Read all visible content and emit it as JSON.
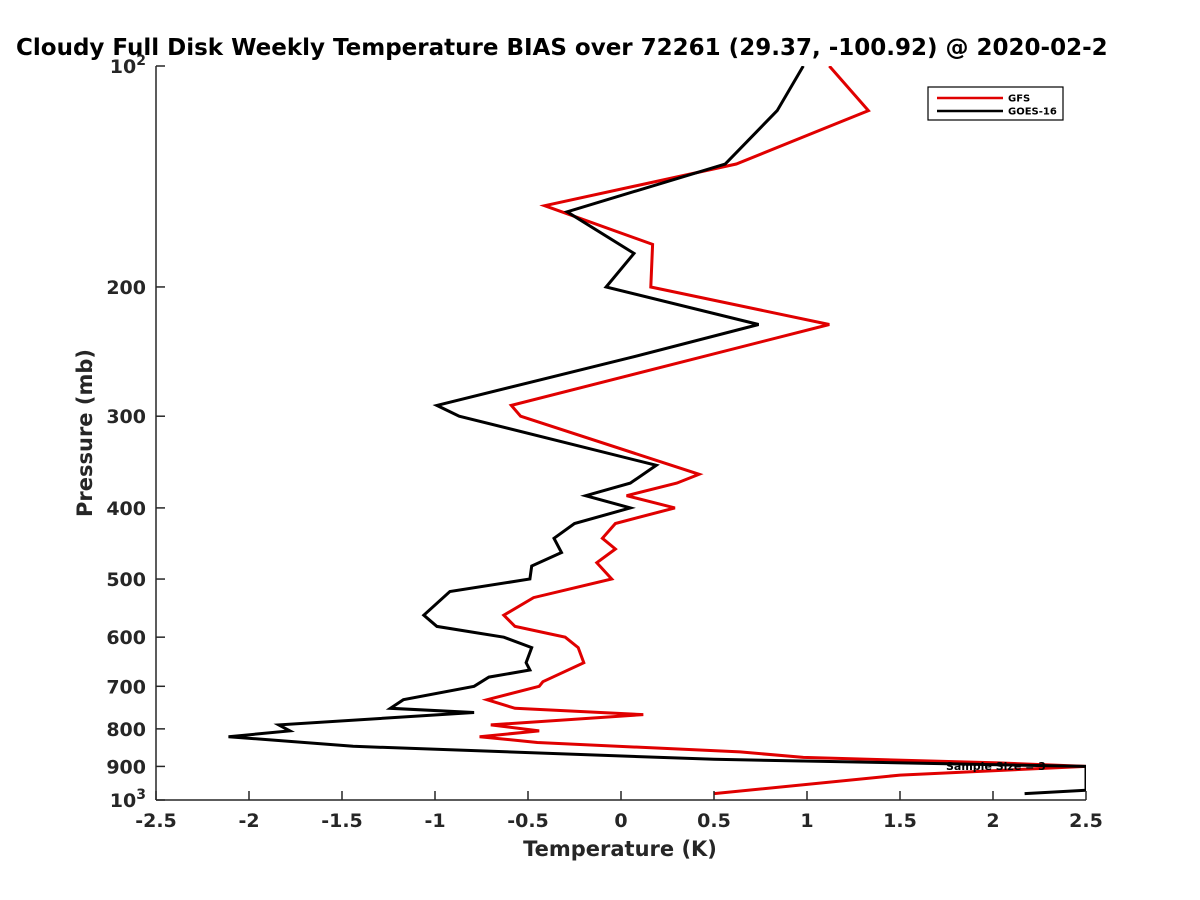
{
  "chart_data": {
    "type": "line",
    "title": "Cloudy Full Disk Weekly Temperature BIAS over 72261 (29.37, -100.92) @ 2020-02-2",
    "xlabel": "Temperature (K)",
    "ylabel": "Pressure (mb)",
    "xlim": [
      -2.5,
      2.5
    ],
    "ylim": [
      100,
      1000
    ],
    "y_scale": "log",
    "y_reversed": true,
    "grid": false,
    "legend_position": "top-right",
    "x_ticks": [
      "-2.5",
      "-2",
      "-1.5",
      "-1",
      "-0.5",
      "0",
      "0.5",
      "1",
      "1.5",
      "2",
      "2.5"
    ],
    "y_ticks": [
      {
        "value": 100,
        "label": "10",
        "sup": "2"
      },
      {
        "value": 200,
        "label": "200",
        "sup": ""
      },
      {
        "value": 300,
        "label": "300",
        "sup": ""
      },
      {
        "value": 400,
        "label": "400",
        "sup": ""
      },
      {
        "value": 500,
        "label": "500",
        "sup": ""
      },
      {
        "value": 600,
        "label": "600",
        "sup": ""
      },
      {
        "value": 700,
        "label": "700",
        "sup": ""
      },
      {
        "value": 800,
        "label": "800",
        "sup": ""
      },
      {
        "value": 900,
        "label": "900",
        "sup": ""
      },
      {
        "value": 1000,
        "label": "10",
        "sup": "3"
      }
    ],
    "annotation": "Sample Size = 3",
    "series": [
      {
        "name": "GFS",
        "color": "#e00000",
        "points": [
          [
            1.12,
            100
          ],
          [
            1.33,
            115
          ],
          [
            0.62,
            136
          ],
          [
            -0.41,
            155
          ],
          [
            0.17,
            175
          ],
          [
            0.16,
            200
          ],
          [
            1.12,
            225
          ],
          [
            -0.59,
            290
          ],
          [
            -0.54,
            300
          ],
          [
            0.42,
            360
          ],
          [
            0.3,
            370
          ],
          [
            0.03,
            385
          ],
          [
            0.29,
            400
          ],
          [
            -0.03,
            420
          ],
          [
            -0.1,
            440
          ],
          [
            -0.03,
            455
          ],
          [
            -0.13,
            475
          ],
          [
            -0.05,
            500
          ],
          [
            -0.47,
            530
          ],
          [
            -0.63,
            560
          ],
          [
            -0.57,
            580
          ],
          [
            -0.3,
            600
          ],
          [
            -0.23,
            620
          ],
          [
            -0.2,
            650
          ],
          [
            -0.42,
            690
          ],
          [
            -0.44,
            700
          ],
          [
            -0.72,
            730
          ],
          [
            -0.57,
            750
          ],
          [
            0.12,
            765
          ],
          [
            -0.7,
            790
          ],
          [
            -0.44,
            805
          ],
          [
            -0.76,
            820
          ],
          [
            -0.45,
            835
          ],
          [
            0.64,
            860
          ],
          [
            0.98,
            875
          ],
          [
            2.03,
            890
          ],
          [
            2.5,
            900
          ],
          [
            1.5,
            925
          ],
          [
            0.5,
            980
          ]
        ]
      },
      {
        "name": "GOES-16",
        "color": "#000000",
        "points": [
          [
            0.98,
            100
          ],
          [
            0.84,
            115
          ],
          [
            0.56,
            136
          ],
          [
            -0.29,
            158
          ],
          [
            0.07,
            180
          ],
          [
            -0.08,
            200
          ],
          [
            0.74,
            225
          ],
          [
            0.04,
            250
          ],
          [
            -0.99,
            290
          ],
          [
            -0.87,
            300
          ],
          [
            0.19,
            350
          ],
          [
            0.05,
            370
          ],
          [
            -0.19,
            385
          ],
          [
            0.05,
            400
          ],
          [
            -0.25,
            420
          ],
          [
            -0.36,
            440
          ],
          [
            -0.32,
            460
          ],
          [
            -0.48,
            480
          ],
          [
            -0.49,
            500
          ],
          [
            -0.92,
            520
          ],
          [
            -1.06,
            560
          ],
          [
            -0.99,
            580
          ],
          [
            -0.63,
            600
          ],
          [
            -0.48,
            620
          ],
          [
            -0.51,
            650
          ],
          [
            -0.49,
            665
          ],
          [
            -0.71,
            680
          ],
          [
            -0.79,
            700
          ],
          [
            -1.17,
            730
          ],
          [
            -1.24,
            750
          ],
          [
            -0.79,
            760
          ],
          [
            -1.84,
            790
          ],
          [
            -1.78,
            805
          ],
          [
            -2.11,
            820
          ],
          [
            -1.44,
            845
          ],
          [
            0.5,
            880
          ],
          [
            2.5,
            900
          ],
          [
            2.5,
            970
          ],
          [
            2.17,
            980
          ]
        ]
      }
    ]
  }
}
